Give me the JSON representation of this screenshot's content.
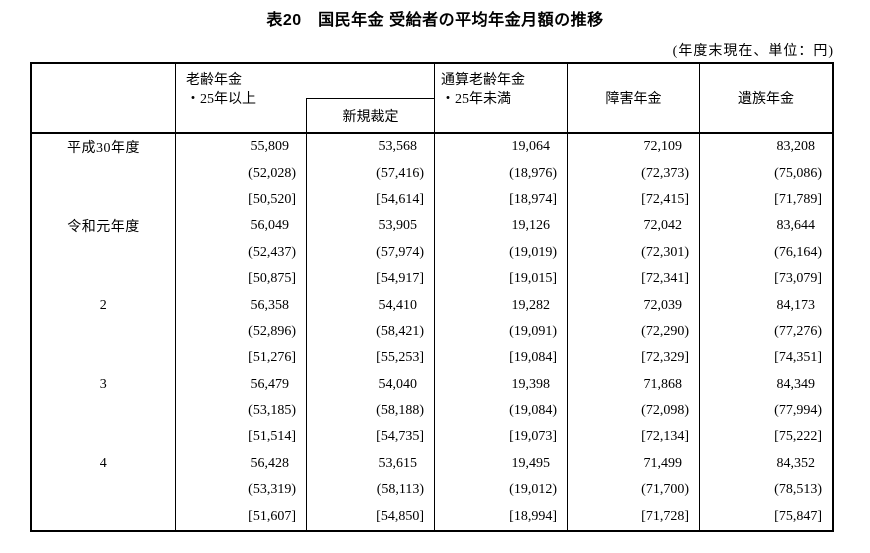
{
  "page": {
    "title": "表20　国民年金 受給者の平均年金月額の推移",
    "unit_note": "(年度末現在、単位：円)"
  },
  "table": {
    "headers": {
      "rourei_line1": "老齢年金",
      "rourei_line2": "・25年以上",
      "shinki": "新規裁定",
      "tsusan_line1": "通算老齢年金",
      "tsusan_line2": "・25年未満",
      "shougai": "障害年金",
      "izoku": "遺族年金"
    },
    "rows": [
      {
        "year": "平成30年度",
        "style": "plain",
        "values": [
          "55,809",
          "53,568",
          "19,064",
          "72,109",
          "83,208"
        ]
      },
      {
        "year": "",
        "style": "paren",
        "values": [
          "(52,028)",
          "(57,416)",
          "(18,976)",
          "(72,373)",
          "(75,086)"
        ]
      },
      {
        "year": "",
        "style": "bracket",
        "values": [
          "[50,520]",
          "[54,614]",
          "[18,974]",
          "[72,415]",
          "[71,789]"
        ]
      },
      {
        "year": "令和元年度",
        "style": "plain",
        "values": [
          "56,049",
          "53,905",
          "19,126",
          "72,042",
          "83,644"
        ]
      },
      {
        "year": "",
        "style": "paren",
        "values": [
          "(52,437)",
          "(57,974)",
          "(19,019)",
          "(72,301)",
          "(76,164)"
        ]
      },
      {
        "year": "",
        "style": "bracket",
        "values": [
          "[50,875]",
          "[54,917]",
          "[19,015]",
          "[72,341]",
          "[73,079]"
        ]
      },
      {
        "year": "2",
        "style": "plain",
        "values": [
          "56,358",
          "54,410",
          "19,282",
          "72,039",
          "84,173"
        ]
      },
      {
        "year": "",
        "style": "paren",
        "values": [
          "(52,896)",
          "(58,421)",
          "(19,091)",
          "(72,290)",
          "(77,276)"
        ]
      },
      {
        "year": "",
        "style": "bracket",
        "values": [
          "[51,276]",
          "[55,253]",
          "[19,084]",
          "[72,329]",
          "[74,351]"
        ]
      },
      {
        "year": "3",
        "style": "plain",
        "values": [
          "56,479",
          "54,040",
          "19,398",
          "71,868",
          "84,349"
        ]
      },
      {
        "year": "",
        "style": "paren",
        "values": [
          "(53,185)",
          "(58,188)",
          "(19,084)",
          "(72,098)",
          "(77,994)"
        ]
      },
      {
        "year": "",
        "style": "bracket",
        "values": [
          "[51,514]",
          "[54,735]",
          "[19,073]",
          "[72,134]",
          "[75,222]"
        ]
      },
      {
        "year": "4",
        "style": "plain",
        "values": [
          "56,428",
          "53,615",
          "19,495",
          "71,499",
          "84,352"
        ]
      },
      {
        "year": "",
        "style": "paren",
        "values": [
          "(53,319)",
          "(58,113)",
          "(19,012)",
          "(71,700)",
          "(78,513)"
        ]
      },
      {
        "year": "",
        "style": "bracket",
        "values": [
          "[51,607]",
          "[54,850]",
          "[18,994]",
          "[71,728]",
          "[75,847]"
        ]
      }
    ]
  }
}
